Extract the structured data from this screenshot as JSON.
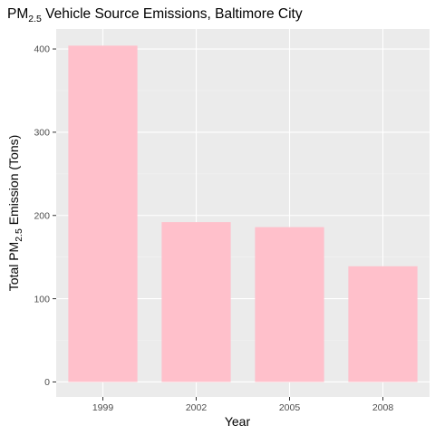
{
  "chart_data": {
    "type": "bar",
    "title": {
      "prefix": "PM",
      "subscript": "2.5",
      "suffix": " Vehicle Source Emissions, Baltimore City"
    },
    "xlabel": "Year",
    "ylabel": {
      "prefix": "Total PM",
      "subscript": "2.5",
      "suffix": " Emission (Tons)"
    },
    "categories": [
      "1999",
      "2002",
      "2005",
      "2008"
    ],
    "values": [
      404,
      192,
      186,
      139
    ],
    "ylim": [
      -18,
      424
    ],
    "yticks": [
      0,
      100,
      200,
      300,
      400
    ],
    "ytick_labels": [
      "0",
      "100",
      "200",
      "300",
      "400"
    ],
    "grid": true,
    "legend": "none",
    "colors": {
      "bar": "#ffc0cb",
      "panel": "#ebebeb",
      "grid_major": "#ffffff",
      "grid_minor": "#f2f2f2",
      "tick": "#333333"
    }
  }
}
